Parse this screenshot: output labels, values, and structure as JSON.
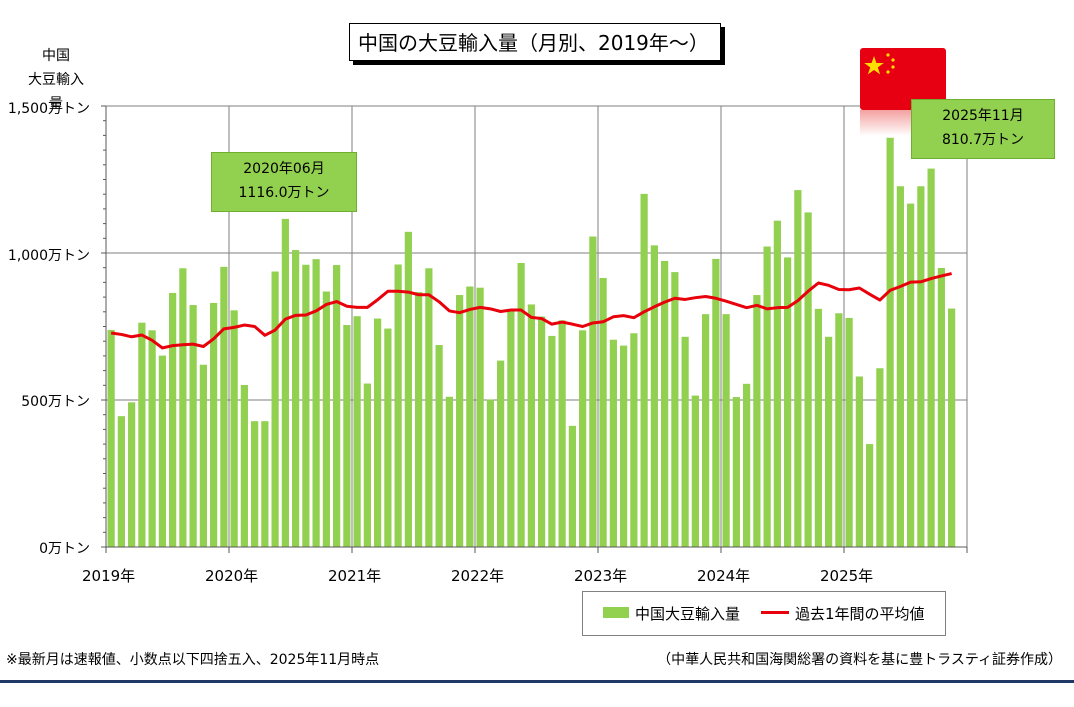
{
  "title": "中国の大豆輸入量（月別、2019年～）",
  "y_axis_label_lines": [
    "中国",
    "大豆輸入量"
  ],
  "annotations": [
    {
      "line1": "2020年06月",
      "line2": "1116.0万トン"
    },
    {
      "line1": "2025年11月",
      "line2": "810.7万トン"
    }
  ],
  "legend": {
    "bars": "中国大豆輸入量",
    "line": "過去1年間の平均値"
  },
  "footnote": "※最新月は速報値、小数点以下四捨五入、2025年11月時点",
  "source": "（中華人民共和国海関総署の資料を基に豊トラスティ証券作成）",
  "flag_icon": "china-flag-icon",
  "colors": {
    "bar": "#92d050",
    "line": "#e8000b",
    "callout": "#92d050",
    "rule": "#1f3864"
  },
  "chart_data": {
    "type": "bar",
    "title": "中国の大豆輸入量（月別、2019年～）",
    "xlabel": "",
    "ylabel": "中国 大豆輸入量",
    "ylim": [
      0,
      1500
    ],
    "yticks": [
      0,
      500,
      1000,
      1500
    ],
    "ytick_labels": [
      "0万トン",
      "500万トン",
      "1,000万トン",
      "1,500万トン"
    ],
    "year_labels": [
      "2019年",
      "2020年",
      "2021年",
      "2022年",
      "2023年",
      "2024年",
      "2025年"
    ],
    "grid": true,
    "legend_position": "bottom-right",
    "months_start": "2019-01",
    "series": [
      {
        "name": "中国大豆輸入量",
        "type": "bar",
        "values": [
          738,
          445,
          492,
          763,
          737,
          651,
          864,
          948,
          823,
          620,
          830,
          953,
          805,
          551,
          428,
          428,
          937,
          1116,
          1010,
          960,
          979,
          869,
          959,
          755,
          785,
          556,
          777,
          743,
          961,
          1072,
          867,
          948,
          687,
          511,
          857,
          886,
          882,
          502,
          634,
          804,
          966,
          825,
          784,
          718,
          771,
          412,
          737,
          1056,
          915,
          705,
          685,
          727,
          1201,
          1026,
          973,
          935,
          715,
          515,
          792,
          980,
          792,
          510,
          555,
          857,
          1022,
          1110,
          985,
          1214,
          1138,
          810,
          715,
          795,
          779,
          580,
          350,
          608,
          1392,
          1227,
          1168,
          1227,
          1287,
          949,
          811
        ]
      },
      {
        "name": "過去1年間の平均値",
        "type": "line",
        "values": [
          728,
          723,
          715,
          721,
          703,
          677,
          685,
          688,
          690,
          682,
          708,
          742,
          747,
          755,
          750,
          720,
          738,
          775,
          788,
          789,
          803,
          825,
          835,
          819,
          815,
          815,
          841,
          870,
          870,
          867,
          858,
          858,
          834,
          803,
          797,
          808,
          815,
          810,
          801,
          806,
          806,
          781,
          777,
          758,
          765,
          758,
          750,
          762,
          766,
          783,
          787,
          780,
          800,
          817,
          833,
          846,
          842,
          848,
          852,
          846,
          836,
          825,
          814,
          822,
          810,
          814,
          815,
          838,
          870,
          898,
          890,
          876,
          875,
          881,
          860,
          840,
          873,
          886,
          901,
          902,
          913,
          922,
          930
        ]
      }
    ]
  }
}
